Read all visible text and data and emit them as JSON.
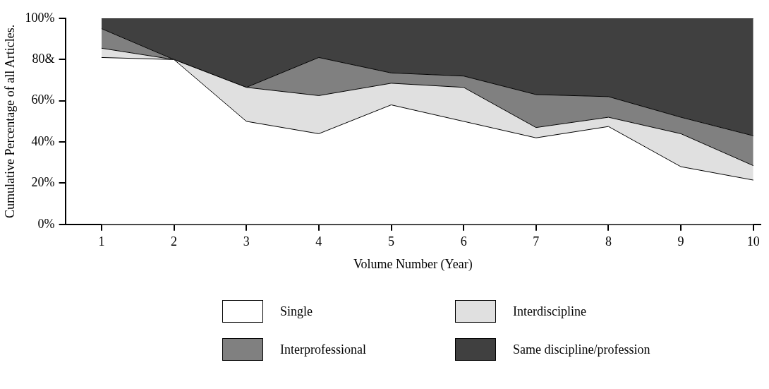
{
  "chart_data": {
    "type": "area",
    "stacked": true,
    "xlabel": "Volume Number (Year)",
    "ylabel": "Cumulative Percentage of all Articles.",
    "x": [
      1,
      2,
      3,
      4,
      5,
      6,
      7,
      8,
      9,
      10
    ],
    "xlim": [
      0.5,
      10.1
    ],
    "xticks": [
      1,
      2,
      3,
      4,
      5,
      6,
      7,
      8,
      9,
      10
    ],
    "ylim": [
      0,
      100
    ],
    "yticks": [
      {
        "value": 0,
        "label": "0%"
      },
      {
        "value": 20,
        "label": "20%"
      },
      {
        "value": 40,
        "label": "40%"
      },
      {
        "value": 60,
        "label": "60%"
      },
      {
        "value": 80,
        "label": "80&"
      },
      {
        "value": 100,
        "label": "100%"
      }
    ],
    "grid": false,
    "legend": "bottom",
    "series": [
      {
        "name": "Single",
        "color": "#ffffff",
        "values": [
          81,
          80,
          50,
          44,
          58,
          50,
          42,
          47.5,
          28,
          21.5
        ]
      },
      {
        "name": "Interdiscipline",
        "color": "#e0e0e0",
        "values": [
          4.5,
          0,
          16.5,
          18.5,
          10.5,
          16.5,
          5,
          4.5,
          16,
          7
        ]
      },
      {
        "name": "Interprofessional",
        "color": "#808080",
        "values": [
          9.5,
          0,
          0,
          18.5,
          5,
          5.5,
          16,
          10,
          8,
          14.5
        ]
      },
      {
        "name": "Same discipline/profession",
        "color": "#404040",
        "values": [
          5,
          20,
          33.5,
          19,
          26.5,
          28,
          37,
          38,
          48,
          57
        ]
      }
    ]
  }
}
